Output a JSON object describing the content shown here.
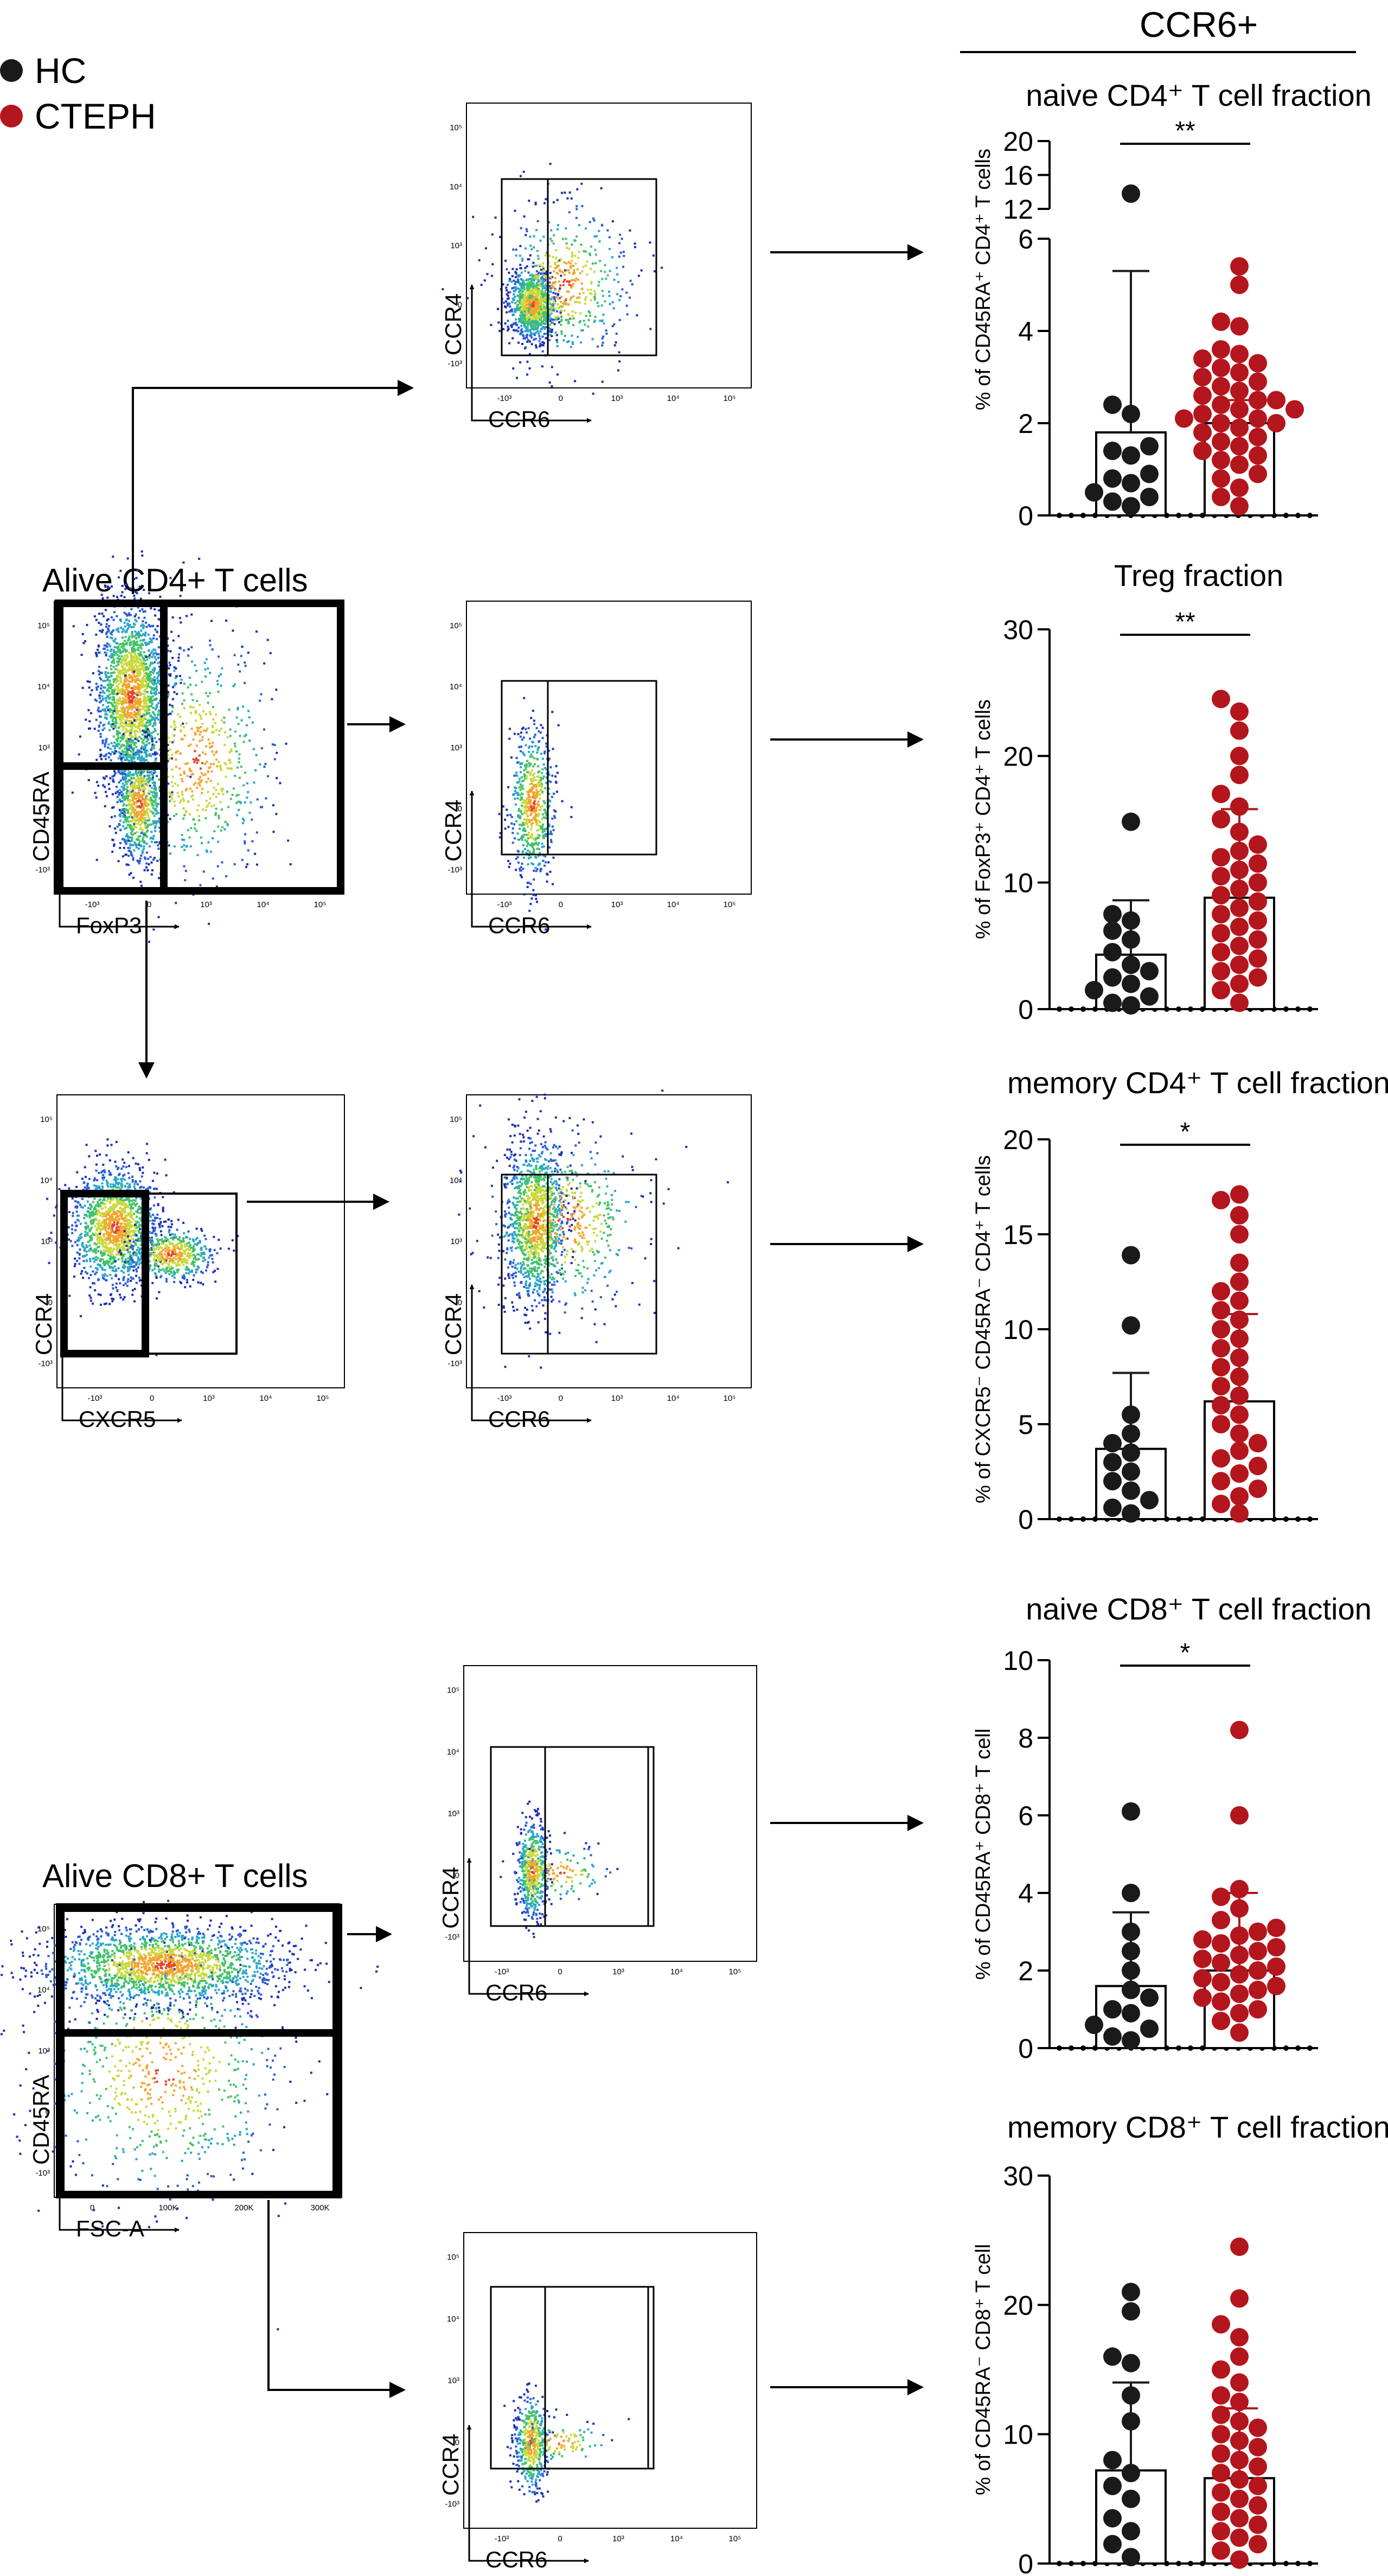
{
  "colors": {
    "hc": "#1a1a1a",
    "cteph": "#b3161c",
    "axis": "#000000"
  },
  "legend": [
    {
      "label": "HC",
      "color": "#1a1a1a"
    },
    {
      "label": "CTEPH",
      "color": "#b3161c"
    }
  ],
  "header": {
    "title": "CCR6+"
  },
  "gating": {
    "parent_cd4": {
      "title": "Alive CD4+ T cells",
      "xlabel": "FoxP3",
      "ylabel": "CD45RA",
      "xticks": [
        "-10³",
        "0",
        "10³",
        "10⁴",
        "10⁵"
      ],
      "yticks": [
        "10⁵",
        "10⁴",
        "10³",
        "0",
        "-10³"
      ]
    },
    "parent_cxcr5": {
      "xlabel": "CXCR5",
      "ylabel": "CCR4",
      "xticks": [
        "-10³",
        "0",
        "10³",
        "10⁴",
        "10⁵"
      ],
      "yticks": [
        "10⁵",
        "10⁴",
        "10³",
        "0",
        "-10³"
      ]
    },
    "parent_cd8": {
      "title": "Alive CD8+ T cells",
      "xlabel": "FSC-A",
      "ylabel": "CD45RA",
      "xticks": [
        "0",
        "100K",
        "200K",
        "300K"
      ],
      "yticks": [
        "10⁵",
        "10⁴",
        "10³",
        "0",
        "-10³"
      ]
    },
    "ccr6_plot": {
      "xlabel": "CCR6",
      "ylabel": "CCR4",
      "xticks": [
        "-10³",
        "0",
        "10³",
        "10⁴",
        "10⁵"
      ],
      "yticks": [
        "10⁵",
        "10⁴",
        "10³",
        "0",
        "-10³"
      ]
    }
  },
  "chart_data": [
    {
      "type": "bar",
      "title": "naive CD4⁺ T cell fraction",
      "ylabel": "% of CD45RA⁺ CD4⁺ T cells",
      "ylim": [
        0,
        6
      ],
      "broken_upper": [
        12,
        20
      ],
      "yticks_lower": [
        0,
        2,
        4,
        6
      ],
      "yticks_upper": [
        12,
        16,
        20
      ],
      "categories": [
        "HC",
        "CTEPH"
      ],
      "means": [
        1.8,
        2.0
      ],
      "sd": [
        3.5,
        0.5
      ],
      "significance": "**",
      "hc_points": [
        0.2,
        0.3,
        0.4,
        0.5,
        0.7,
        0.8,
        0.9,
        1.3,
        1.4,
        1.5,
        2.2,
        2.4,
        13.8
      ],
      "cteph_points": [
        0.2,
        0.4,
        0.6,
        0.8,
        0.9,
        1.1,
        1.2,
        1.3,
        1.4,
        1.5,
        1.6,
        1.7,
        1.8,
        1.9,
        2.0,
        2.0,
        2.1,
        2.1,
        2.2,
        2.3,
        2.3,
        2.4,
        2.5,
        2.5,
        2.6,
        2.7,
        2.8,
        2.9,
        3.0,
        3.1,
        3.2,
        3.3,
        3.4,
        3.5,
        3.6,
        4.1,
        4.2,
        5.0,
        5.4
      ]
    },
    {
      "type": "bar",
      "title": "Treg fraction",
      "ylabel": "% of FoxP3⁺ CD4⁺ T cells",
      "ylim": [
        0,
        30
      ],
      "yticks": [
        0,
        10,
        20,
        30
      ],
      "categories": [
        "HC",
        "CTEPH"
      ],
      "means": [
        4.3,
        8.8
      ],
      "sd": [
        4.3,
        7.0
      ],
      "significance": "**",
      "hc_points": [
        0.3,
        0.5,
        1.0,
        1.5,
        2.0,
        2.5,
        3.0,
        3.5,
        4.5,
        5.5,
        6.2,
        7.0,
        7.5,
        14.8
      ],
      "cteph_points": [
        0.5,
        1.5,
        2.0,
        2.5,
        3.0,
        3.5,
        4.0,
        4.5,
        5.0,
        5.5,
        6.0,
        6.5,
        7.0,
        7.5,
        8.0,
        8.5,
        9.0,
        9.5,
        10.0,
        10.5,
        11.0,
        11.5,
        12.0,
        12.5,
        13.0,
        14.0,
        15.0,
        16.0,
        17.0,
        18.5,
        20.0,
        22.0,
        23.5,
        24.5
      ]
    },
    {
      "type": "bar",
      "title": "memory CD4⁺ T cell fraction",
      "ylabel": "% of CXCR5⁻ CD45RA⁻ CD4⁺ T cells",
      "ylim": [
        0,
        20
      ],
      "yticks": [
        0,
        5,
        10,
        15,
        20
      ],
      "categories": [
        "HC",
        "CTEPH"
      ],
      "means": [
        3.7,
        6.2
      ],
      "sd": [
        4.0,
        4.6
      ],
      "significance": "*",
      "hc_points": [
        0.3,
        0.6,
        1.0,
        1.5,
        2.0,
        2.5,
        3.0,
        3.5,
        4.0,
        4.5,
        5.5,
        10.2,
        13.9
      ],
      "cteph_points": [
        0.3,
        0.8,
        1.2,
        1.6,
        2.0,
        2.4,
        2.8,
        3.2,
        3.6,
        4.0,
        4.5,
        5.0,
        5.5,
        6.0,
        6.5,
        7.0,
        7.5,
        8.0,
        8.5,
        9.0,
        9.5,
        10.0,
        10.5,
        11.0,
        11.5,
        12.0,
        12.5,
        13.5,
        15.0,
        16.0,
        16.8,
        17.1
      ]
    },
    {
      "type": "bar",
      "title": "naive CD8⁺ T cell fraction",
      "ylabel": "% of CD45RA⁺ CD8⁺ T cell",
      "ylim": [
        0,
        10
      ],
      "yticks": [
        0,
        2,
        4,
        6,
        8,
        10
      ],
      "categories": [
        "HC",
        "CTEPH"
      ],
      "means": [
        1.6,
        2.0
      ],
      "sd": [
        1.9,
        2.0
      ],
      "significance": "*",
      "hc_points": [
        0.2,
        0.3,
        0.5,
        0.6,
        0.9,
        1.0,
        1.3,
        1.5,
        2.0,
        2.5,
        3.0,
        4.0,
        6.1
      ],
      "cteph_points": [
        0.4,
        0.7,
        0.9,
        1.0,
        1.2,
        1.3,
        1.4,
        1.5,
        1.6,
        1.7,
        1.8,
        1.9,
        2.0,
        2.1,
        2.2,
        2.3,
        2.4,
        2.5,
        2.6,
        2.7,
        2.8,
        2.9,
        3.0,
        3.1,
        3.3,
        3.6,
        3.9,
        4.1,
        6.0,
        8.2
      ]
    },
    {
      "type": "bar",
      "title": "memory CD8⁺ T cell fraction",
      "ylabel": "% of CD45RA⁻ CD8⁺ T cell",
      "ylim": [
        0,
        30
      ],
      "yticks": [
        0,
        10,
        20,
        30
      ],
      "categories": [
        "HC",
        "CTEPH"
      ],
      "means": [
        7.2,
        6.6
      ],
      "sd": [
        6.8,
        5.4
      ],
      "significance": "",
      "hc_points": [
        0.5,
        1.5,
        2.5,
        3.5,
        5.0,
        6.0,
        7.0,
        8.0,
        11.0,
        13.0,
        15.5,
        16.0,
        19.5,
        21.0
      ],
      "cteph_points": [
        0.3,
        1.0,
        1.5,
        2.0,
        2.5,
        3.0,
        3.5,
        4.0,
        4.5,
        5.0,
        5.5,
        6.0,
        6.5,
        7.0,
        7.5,
        8.0,
        8.5,
        9.0,
        9.5,
        10.0,
        10.5,
        11.0,
        11.5,
        12.5,
        13.0,
        14.0,
        15.0,
        16.0,
        17.5,
        18.5,
        20.5,
        24.5
      ]
    }
  ]
}
